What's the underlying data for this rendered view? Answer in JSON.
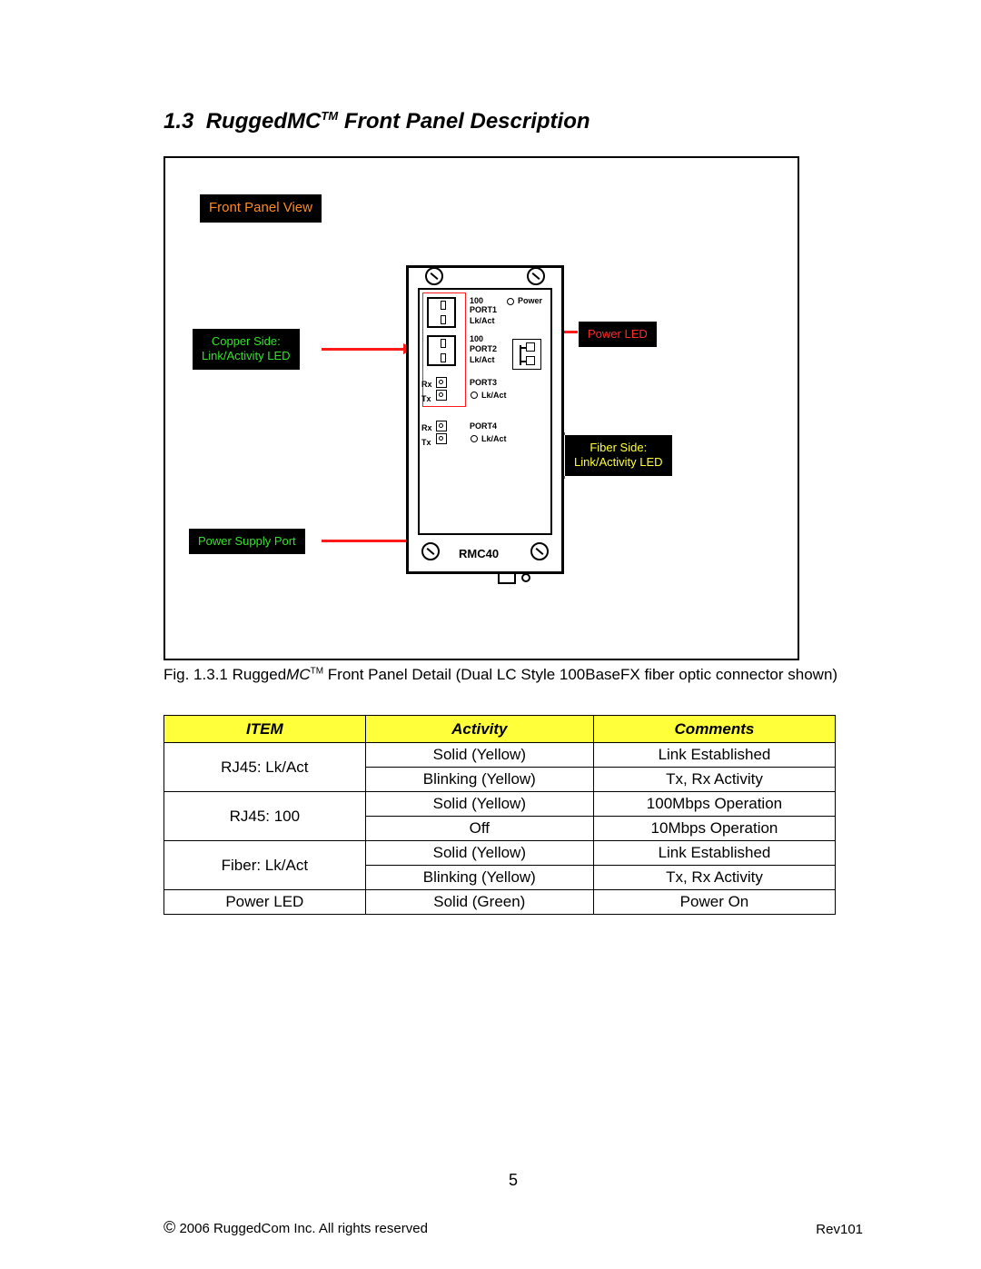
{
  "heading": {
    "section": "1.3",
    "brand_prefix": "Rugged",
    "brand_mc": "MC",
    "tm": "TM",
    "rest": " Front Panel Description"
  },
  "callouts": {
    "title": "Front Panel View",
    "copper": "Copper Side:\nLink/Activity LED",
    "power_led": "Power LED",
    "fiber": "Fiber Side:\nLink/Activity LED",
    "psu": "Power Supply Port"
  },
  "device": {
    "port1_100": "100",
    "port1": "PORT1",
    "lkact": "Lk/Act",
    "port2_100": "100",
    "port2": "PORT2",
    "rx": "Rx",
    "tx": "Tx",
    "port3": "PORT3",
    "port3_lk": "Lk/Act",
    "port4": "PORT4",
    "port4_lk": "Lk/Act",
    "model": "RMC40",
    "power": "Power"
  },
  "caption": {
    "pre": "Fig. 1.3.1 Rugged",
    "mc": "MC",
    "tm": "TM",
    "post": " Front Panel Detail (Dual LC Style 100BaseFX fiber optic connector shown)"
  },
  "table": {
    "headers": [
      "ITEM",
      "Activity",
      "Comments"
    ],
    "rows": [
      {
        "item": "RJ45: Lk/Act",
        "span": 2,
        "acts": [
          "Solid (Yellow)",
          "Blinking (Yellow)"
        ],
        "coms": [
          "Link Established",
          "Tx, Rx Activity"
        ]
      },
      {
        "item": "RJ45: 100",
        "span": 2,
        "acts": [
          "Solid (Yellow)",
          "Off"
        ],
        "coms": [
          "100Mbps Operation",
          "10Mbps Operation"
        ]
      },
      {
        "item": "Fiber:  Lk/Act",
        "span": 2,
        "acts": [
          "Solid (Yellow)",
          "Blinking (Yellow)"
        ],
        "coms": [
          "Link Established",
          "Tx, Rx Activity"
        ]
      },
      {
        "item": "Power LED",
        "span": 1,
        "acts": [
          "Solid (Green)"
        ],
        "coms": [
          "Power On"
        ]
      }
    ],
    "col_widths": [
      "30%",
      "34%",
      "36%"
    ],
    "header_bg": "#ffff3a",
    "border_color": "#000000"
  },
  "footer": {
    "page": "5",
    "copyright": "2006 RuggedCom Inc.  All rights reserved",
    "rev": "Rev101"
  },
  "colors": {
    "arrow": "#ff1a1a",
    "callout_bg": "#000000"
  }
}
